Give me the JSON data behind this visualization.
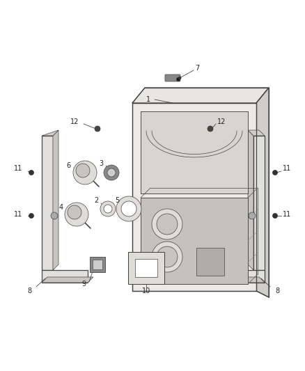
{
  "background_color": "#ffffff",
  "fig_width": 4.38,
  "fig_height": 5.33,
  "dpi": 100,
  "line_color": "#444444",
  "label_color": "#222222",
  "label_fontsize": 7.0,
  "lw_main": 0.9,
  "lw_thin": 0.5,
  "lw_leader": 0.6
}
